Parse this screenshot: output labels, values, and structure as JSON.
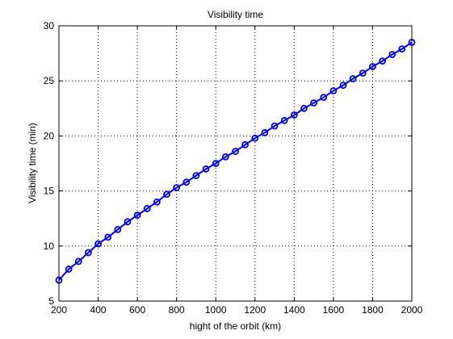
{
  "chart_data": {
    "type": "line",
    "title": "Visibility time",
    "xlabel": "hight of the orbit (km)",
    "ylabel": "Visibility time (min)",
    "xlim": [
      200,
      2000
    ],
    "ylim": [
      5,
      30
    ],
    "xticks": [
      200,
      400,
      600,
      800,
      1000,
      1200,
      1400,
      1600,
      1800,
      2000
    ],
    "yticks": [
      5,
      10,
      15,
      20,
      25,
      30
    ],
    "grid": true,
    "marker": "circle",
    "line_color": "#0000ff",
    "series": [
      {
        "x": [
          200,
          250,
          300,
          350,
          400,
          450,
          500,
          550,
          600,
          650,
          700,
          750,
          800,
          850,
          900,
          950,
          1000,
          1050,
          1100,
          1150,
          1200,
          1250,
          1300,
          1350,
          1400,
          1450,
          1500,
          1550,
          1600,
          1650,
          1700,
          1750,
          1800,
          1850,
          1900,
          1950,
          2000
        ],
        "values": [
          6.9,
          7.9,
          8.6,
          9.4,
          10.2,
          10.8,
          11.5,
          12.2,
          12.8,
          13.4,
          14.0,
          14.7,
          15.3,
          15.8,
          16.4,
          17.0,
          17.5,
          18.1,
          18.6,
          19.2,
          19.8,
          20.3,
          20.9,
          21.4,
          21.9,
          22.5,
          23.0,
          23.5,
          24.1,
          24.6,
          25.2,
          25.7,
          26.3,
          26.8,
          27.4,
          27.9,
          28.5
        ]
      }
    ]
  }
}
